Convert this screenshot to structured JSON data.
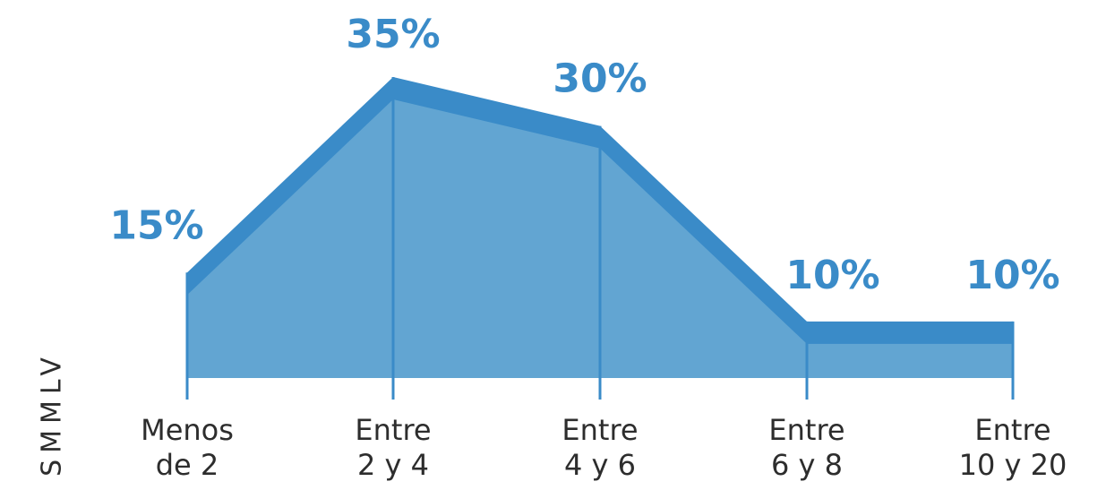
{
  "chart_data": {
    "type": "area",
    "unit": "%",
    "categories": [
      [
        "Menos",
        "de 2"
      ],
      [
        "Entre",
        "2 y 4"
      ],
      [
        "Entre",
        "4 y 6"
      ],
      [
        "Entre",
        "6 y 8"
      ],
      [
        "Entre",
        "10 y 20"
      ]
    ],
    "values": [
      15,
      35,
      30,
      10,
      10
    ],
    "labels": [
      "15%",
      "35%",
      "30%",
      "10%",
      "10%"
    ],
    "ylabel": "SMMLV",
    "ylim": [
      0,
      35
    ],
    "grid": false,
    "colors": {
      "fill": "#62a5d2",
      "band": "#3a8bc8",
      "label": "#3a8bc8",
      "axis_text": "#2d2d2d"
    }
  }
}
